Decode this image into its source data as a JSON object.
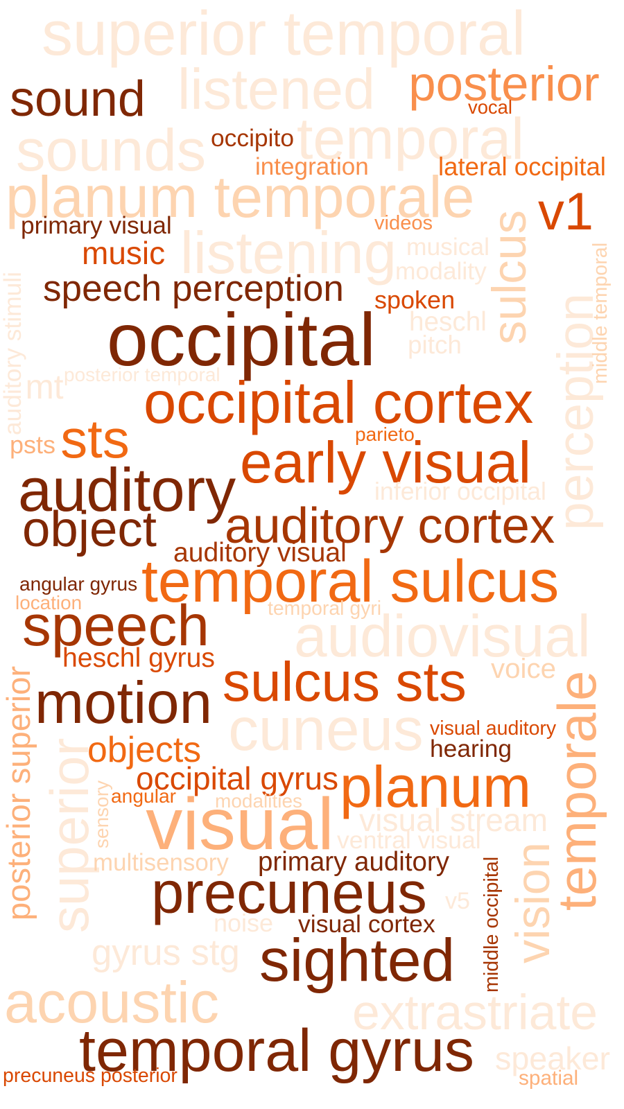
{
  "palette": {
    "c1": "#fde9d8",
    "c2": "#fdd4b0",
    "c3": "#fdb07a",
    "c4": "#f98f4c",
    "c5": "#f16913",
    "c6": "#d94801",
    "c7": "#a63603",
    "c8": "#7f2704"
  },
  "words": [
    {
      "text": "superior temporal",
      "color": "c1"
    },
    {
      "text": "listened",
      "color": "c1"
    },
    {
      "text": "posterior",
      "color": "c4"
    },
    {
      "text": "sound",
      "color": "c8"
    },
    {
      "text": "vocal",
      "color": "c6"
    },
    {
      "text": "sounds",
      "color": "c1"
    },
    {
      "text": "occipito",
      "color": "c7"
    },
    {
      "text": "temporal",
      "color": "c1"
    },
    {
      "text": "integration",
      "color": "c4"
    },
    {
      "text": "lateral occipital",
      "color": "c5"
    },
    {
      "text": "planum temporale",
      "color": "c2"
    },
    {
      "text": "v1",
      "color": "c6"
    },
    {
      "text": "primary visual",
      "color": "c8"
    },
    {
      "text": "videos",
      "color": "c4"
    },
    {
      "text": "music",
      "color": "c6"
    },
    {
      "text": "listening",
      "color": "c1"
    },
    {
      "text": "musical",
      "color": "c1"
    },
    {
      "text": "modality",
      "color": "c1"
    },
    {
      "text": "sulcus",
      "color": "c2"
    },
    {
      "text": "speech perception",
      "color": "c8"
    },
    {
      "text": "spoken",
      "color": "c6"
    },
    {
      "text": "heschl",
      "color": "c1"
    },
    {
      "text": "pitch",
      "color": "c1"
    },
    {
      "text": "auditory stimuli",
      "color": "c1"
    },
    {
      "text": "occipital",
      "color": "c8"
    },
    {
      "text": "perception",
      "color": "c1"
    },
    {
      "text": "middle temporal",
      "color": "c2"
    },
    {
      "text": "mt",
      "color": "c1"
    },
    {
      "text": "posterior temporal",
      "color": "c1"
    },
    {
      "text": "occipital cortex",
      "color": "c6"
    },
    {
      "text": "psts",
      "color": "c3"
    },
    {
      "text": "sts",
      "color": "c5"
    },
    {
      "text": "parieto",
      "color": "c5"
    },
    {
      "text": "early visual",
      "color": "c6"
    },
    {
      "text": "auditory",
      "color": "c8"
    },
    {
      "text": "inferior occipital",
      "color": "c1"
    },
    {
      "text": "object",
      "color": "c8"
    },
    {
      "text": "auditory cortex",
      "color": "c7"
    },
    {
      "text": "auditory visual",
      "color": "c7"
    },
    {
      "text": "angular gyrus",
      "color": "c8"
    },
    {
      "text": "temporal sulcus",
      "color": "c5"
    },
    {
      "text": "location",
      "color": "c3"
    },
    {
      "text": "temporal gyri",
      "color": "c2"
    },
    {
      "text": "speech",
      "color": "c7"
    },
    {
      "text": "audiovisual",
      "color": "c1"
    },
    {
      "text": "heschl gyrus",
      "color": "c6"
    },
    {
      "text": "posterior superior",
      "color": "c3"
    },
    {
      "text": "voice",
      "color": "c2"
    },
    {
      "text": "sulcus sts",
      "color": "c6"
    },
    {
      "text": "motion",
      "color": "c8"
    },
    {
      "text": "cuneus",
      "color": "c1"
    },
    {
      "text": "temporale",
      "color": "c3"
    },
    {
      "text": "visual auditory",
      "color": "c6"
    },
    {
      "text": "superior",
      "color": "c1"
    },
    {
      "text": "objects",
      "color": "c5"
    },
    {
      "text": "hearing",
      "color": "c8"
    },
    {
      "text": "occipital gyrus",
      "color": "c6"
    },
    {
      "text": "planum",
      "color": "c5"
    },
    {
      "text": "sensory",
      "color": "c2"
    },
    {
      "text": "angular",
      "color": "c5"
    },
    {
      "text": "modalities",
      "color": "c2"
    },
    {
      "text": "visual",
      "color": "c3"
    },
    {
      "text": "visual stream",
      "color": "c1"
    },
    {
      "text": "ventral visual",
      "color": "c1"
    },
    {
      "text": "multisensory",
      "color": "c2"
    },
    {
      "text": "primary auditory",
      "color": "c8"
    },
    {
      "text": "precuneus",
      "color": "c8"
    },
    {
      "text": "vision",
      "color": "c2"
    },
    {
      "text": "middle occipital",
      "color": "c7"
    },
    {
      "text": "v5",
      "color": "c1"
    },
    {
      "text": "noise",
      "color": "c1"
    },
    {
      "text": "visual cortex",
      "color": "c8"
    },
    {
      "text": "gyrus stg",
      "color": "c1"
    },
    {
      "text": "sighted",
      "color": "c8"
    },
    {
      "text": "acoustic",
      "color": "c2"
    },
    {
      "text": "extrastriate",
      "color": "c1"
    },
    {
      "text": "temporal gyrus",
      "color": "c8"
    },
    {
      "text": "speaker",
      "color": "c1"
    },
    {
      "text": "precuneus posterior",
      "color": "c6"
    },
    {
      "text": "spatial",
      "color": "c3"
    }
  ]
}
